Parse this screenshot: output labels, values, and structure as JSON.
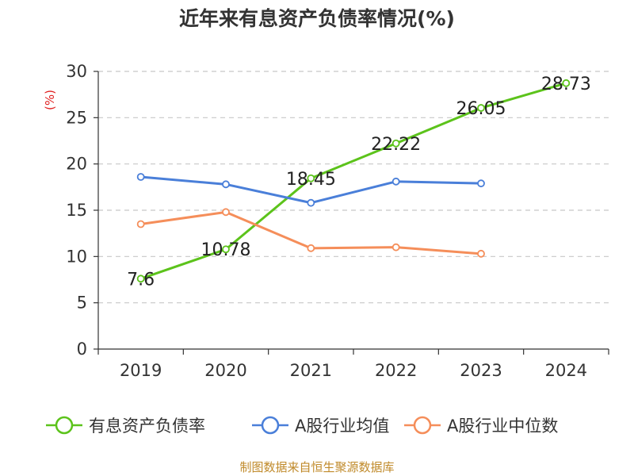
{
  "chart_data": {
    "type": "line",
    "title": "近年来有息资产负债率情况(%)",
    "ylabel": "(%)",
    "xlabel": "",
    "categories": [
      "2019",
      "2020",
      "2021",
      "2022",
      "2023",
      "2024"
    ],
    "ylim": [
      0,
      30
    ],
    "yticks": [
      0,
      5,
      10,
      15,
      20,
      25,
      30
    ],
    "grid": true,
    "legend_position": "bottom",
    "series": [
      {
        "name": "有息资产负债率",
        "color": "#5cc31b",
        "values": [
          7.6,
          10.78,
          18.45,
          22.22,
          26.05,
          28.73
        ],
        "labels": [
          "7.6",
          "10.78",
          "18.45",
          "22.22",
          "26.05",
          "28.73"
        ]
      },
      {
        "name": "A股行业均值",
        "color": "#4a7fd9",
        "values": [
          18.6,
          17.8,
          15.8,
          18.1,
          17.9,
          null
        ]
      },
      {
        "name": "A股行业中位数",
        "color": "#f58e5a",
        "values": [
          13.5,
          14.8,
          10.9,
          11.0,
          10.3,
          null
        ]
      }
    ],
    "source": "制图数据来自恒生聚源数据库"
  }
}
